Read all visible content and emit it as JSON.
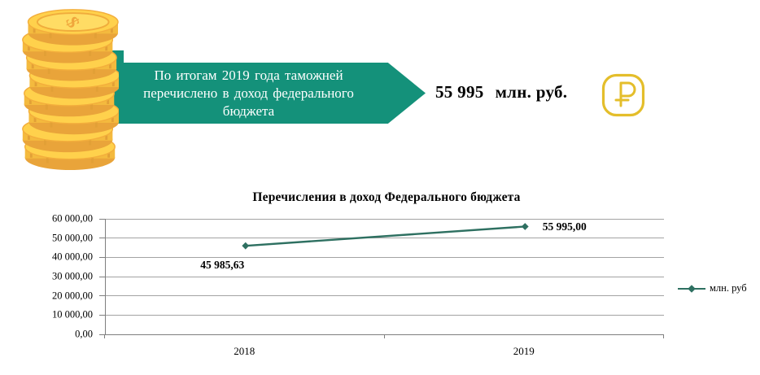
{
  "colors": {
    "banner_green": "#14917A",
    "line_teal": "#2E7061",
    "ruble_gold": "#E4BE2B",
    "coin_gold": "#F7C137"
  },
  "banner": {
    "line1": "По итогам 2019 года таможней",
    "line2": "перечислено в доход федерального",
    "line3": "бюджета"
  },
  "headline": {
    "amount": "55 995",
    "unit": "млн. руб."
  },
  "ruble_icon": {
    "symbol": "₽"
  },
  "chart_data": {
    "type": "line",
    "title": "Перечисления в доход Федерального бюджета",
    "categories": [
      "2018",
      "2019"
    ],
    "series": [
      {
        "name": "млн. руб",
        "values": [
          45985.63,
          55995.0
        ]
      }
    ],
    "point_labels": [
      "45 985,63",
      "55 995,00"
    ],
    "ylim": [
      0,
      60000
    ],
    "ytick_step": 10000,
    "ytick_labels": [
      "0,00",
      "10 000,00",
      "20 000,00",
      "30 000,00",
      "40 000,00",
      "50 000,00",
      "60 000,00"
    ],
    "grid": true,
    "xlabel": "",
    "ylabel": "",
    "legend": {
      "label": "млн. руб",
      "position": "right"
    }
  }
}
